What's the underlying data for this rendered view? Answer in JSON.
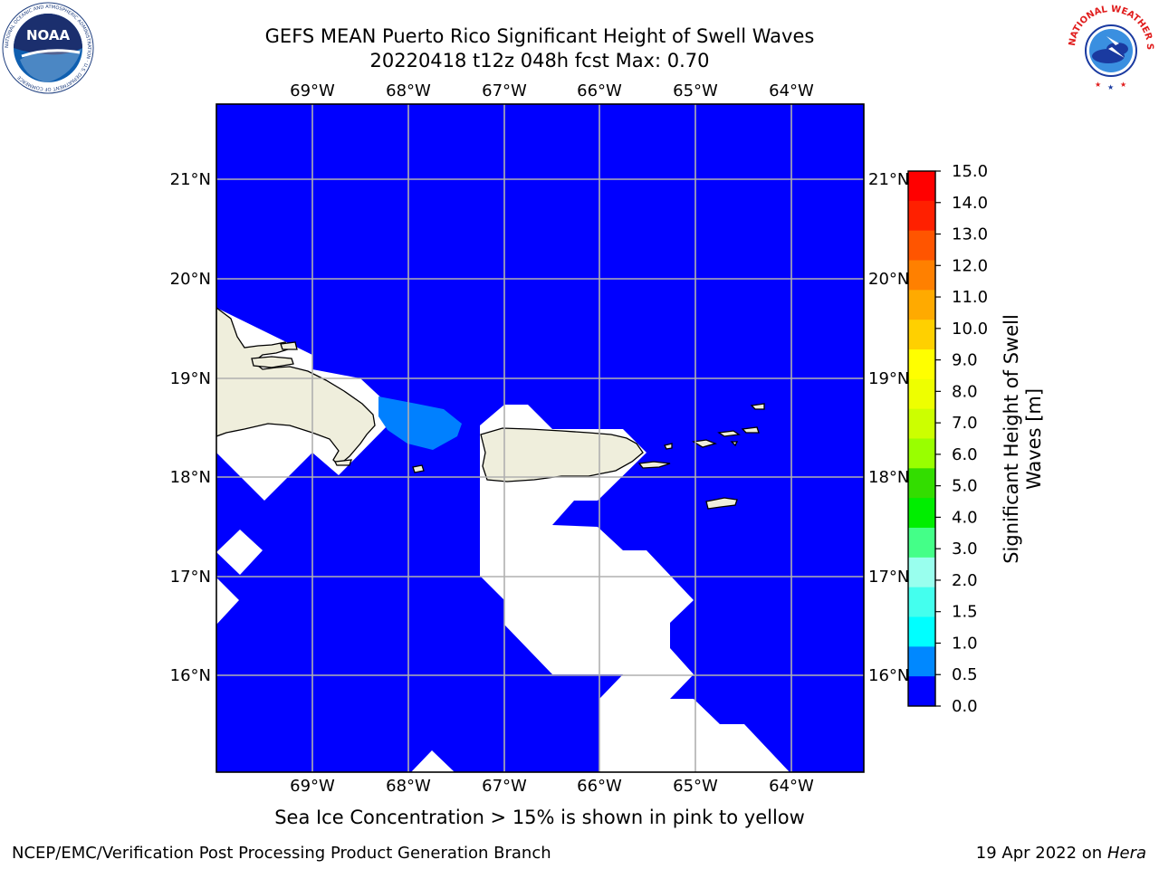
{
  "title": {
    "line1": "GEFS MEAN Puerto Rico Significant Height of Swell Waves",
    "line2": "20220418 t12z 048h fcst   Max: 0.70"
  },
  "map": {
    "lon_ticks": [
      "69°W",
      "68°W",
      "67°W",
      "66°W",
      "65°W",
      "64°W"
    ],
    "lat_ticks": [
      "21°N",
      "20°N",
      "19°N",
      "18°N",
      "17°N",
      "16°N"
    ],
    "ocean_color": "#0000ff",
    "land_color": "#efeedc",
    "nodata_color": "#ffffff",
    "swell_color": "#0080ff"
  },
  "colorbar": {
    "label_line1": "Significant Height of Swell",
    "label_line2": "Waves [m]",
    "ticks": [
      "15.0",
      "14.0",
      "13.0",
      "12.0",
      "11.0",
      "10.0",
      "9.0",
      "8.0",
      "7.0",
      "6.0",
      "5.0",
      "4.0",
      "3.0",
      "2.0",
      "1.5",
      "1.0",
      "0.5",
      "0.0"
    ],
    "colors": [
      "#ff0000",
      "#ff2000",
      "#ff5500",
      "#ff8000",
      "#ffaa00",
      "#ffd000",
      "#ffff00",
      "#eeff00",
      "#ccff00",
      "#99ff00",
      "#33dd00",
      "#00ee00",
      "#44ff88",
      "#99ffee",
      "#44ffee",
      "#00ffff",
      "#0088ff",
      "#0000ff"
    ]
  },
  "note": "Sea Ice Concentration > 15% is shown in pink to yellow",
  "footer": {
    "left": "NCEP/EMC/Verification Post Processing Product Generation Branch",
    "right_prefix": "19 Apr 2022 on ",
    "right_italic": "Hera"
  },
  "logos": {
    "noaa": "NOAA",
    "noaa_ring": "NATIONAL OCEANIC AND ATMOSPHERIC ADMINISTRATION · U.S. DEPARTMENT OF COMMERCE",
    "nws_ring": "NATIONAL WEATHER SERVICE"
  }
}
